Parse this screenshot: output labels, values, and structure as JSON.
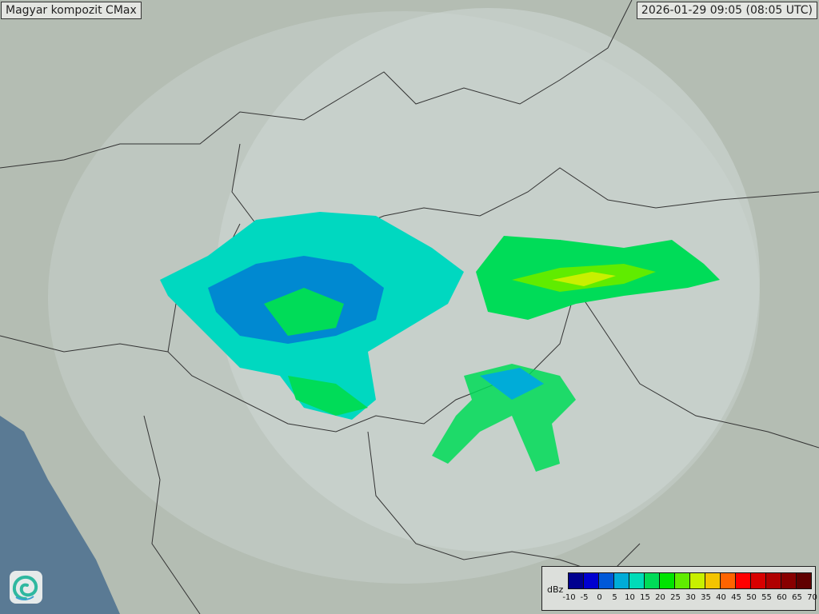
{
  "header": {
    "title": "Magyar kompozit  CMax",
    "timestamp": "2026-01-29 09:05 (08:05 UTC)"
  },
  "legend": {
    "unit": "dBz",
    "ticks": [
      "-10",
      "-5",
      "0",
      "5",
      "10",
      "15",
      "20",
      "25",
      "30",
      "35",
      "40",
      "45",
      "50",
      "55",
      "60",
      "65",
      "70"
    ],
    "colors": [
      "#00008f",
      "#0000d0",
      "#0058d8",
      "#00acd8",
      "#00dcb8",
      "#00dc58",
      "#00e400",
      "#60ec00",
      "#c8f000",
      "#f4c400",
      "#ff6400",
      "#ff0000",
      "#d80000",
      "#b00000",
      "#880000",
      "#600000"
    ]
  },
  "logo": {
    "icon": "met-service-swirl-logo"
  },
  "colors": {
    "sea": "#5a7a94",
    "land": "#b9c1b8",
    "radar_range": "#cdd6d2"
  }
}
